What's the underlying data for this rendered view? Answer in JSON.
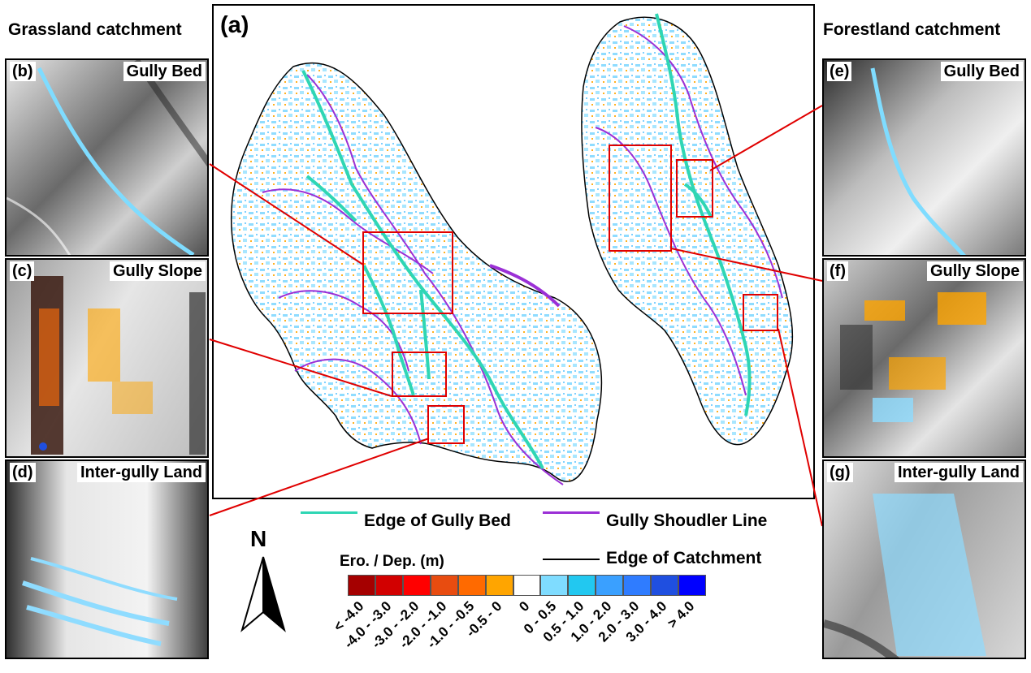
{
  "headings": {
    "left": "Grassland catchment",
    "right": "Forestland catchment"
  },
  "main_map": {
    "label": "(a)"
  },
  "panels": [
    {
      "id": "b",
      "label": "(b)",
      "title": "Gully Bed"
    },
    {
      "id": "c",
      "label": "(c)",
      "title": "Gully Slope"
    },
    {
      "id": "d",
      "label": "(d)",
      "title": "Inter-gully Land"
    },
    {
      "id": "e",
      "label": "(e)",
      "title": "Gully Bed"
    },
    {
      "id": "f",
      "label": "(f)",
      "title": "Gully Slope"
    },
    {
      "id": "g",
      "label": "(g)",
      "title": "Inter-gully Land"
    }
  ],
  "line_legend": {
    "gully_bed": {
      "label": "Edge of Gully Bed",
      "color": "#2fd6b4"
    },
    "shoulder": {
      "label": "Gully Shoudler Line",
      "color": "#9b30d6"
    },
    "catchment": {
      "label": "Edge of Catchment",
      "color": "#000000"
    }
  },
  "north_arrow": {
    "label": "N"
  },
  "colorbar": {
    "title": "Ero. / Dep. (m)",
    "classes": [
      {
        "label": "< -4.0",
        "color": "#a50000"
      },
      {
        "label": "-4.0 - -3.0",
        "color": "#d20000"
      },
      {
        "label": "-3.0 - -2.0",
        "color": "#ff0000"
      },
      {
        "label": "-2.0 - -1.0",
        "color": "#e84c10"
      },
      {
        "label": "-1.0 - -0.5",
        "color": "#ff6a00"
      },
      {
        "label": "-0.5 - 0",
        "color": "#ffa500"
      },
      {
        "label": "0",
        "color": "#ffffff"
      },
      {
        "label": "0 - 0.5",
        "color": "#7fdcff"
      },
      {
        "label": "0.5 - 1.0",
        "color": "#22c8f0"
      },
      {
        "label": "1.0 - 2.0",
        "color": "#3aa0ff"
      },
      {
        "label": "2.0 - 3.0",
        "color": "#2f7cff"
      },
      {
        "label": "3.0 - 4.0",
        "color": "#1f4fe0"
      },
      {
        "label": "> 4.0",
        "color": "#0000ff"
      }
    ]
  },
  "colors": {
    "highlight_box": "#e00000"
  }
}
